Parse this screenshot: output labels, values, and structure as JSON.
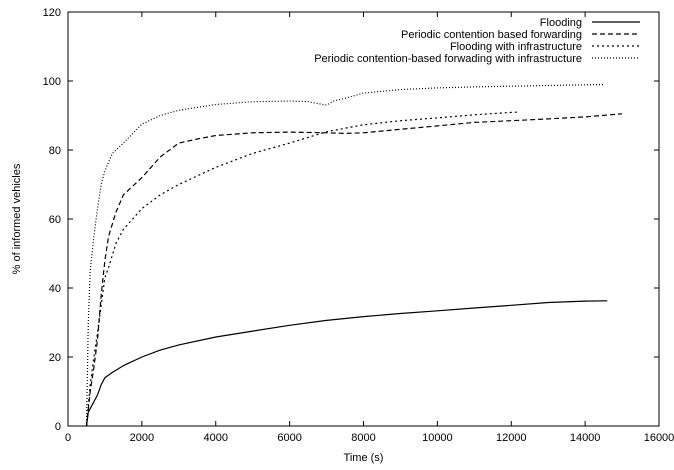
{
  "chart_data": {
    "type": "line",
    "title": "",
    "xlabel": "Time (s)",
    "ylabel": "% of informed vehicles",
    "xlim": [
      0,
      16000
    ],
    "ylim": [
      0,
      120
    ],
    "xticks": [
      0,
      2000,
      4000,
      6000,
      8000,
      10000,
      12000,
      14000,
      16000
    ],
    "yticks": [
      0,
      20,
      40,
      60,
      80,
      100,
      120
    ],
    "grid": false,
    "legend_position": "top-right",
    "line_color": "#000000",
    "series": [
      {
        "name": "Flooding",
        "dash": "solid",
        "x": [
          500,
          550,
          650,
          800,
          900,
          1000,
          1200,
          1500,
          2000,
          2500,
          3000,
          4000,
          5000,
          6000,
          7000,
          8000,
          9000,
          10000,
          11000,
          12000,
          13000,
          14000,
          14600
        ],
        "y": [
          0,
          4,
          6,
          9,
          12,
          14,
          15.5,
          17.5,
          20,
          22,
          23.5,
          25.8,
          27.5,
          29.2,
          30.6,
          31.7,
          32.6,
          33.4,
          34.2,
          35,
          35.8,
          36.2,
          36.3
        ]
      },
      {
        "name": "Periodic contention based forwarding",
        "dash": "dashed",
        "x": [
          500,
          600,
          700,
          800,
          900,
          1000,
          1100,
          1300,
          1500,
          2000,
          2500,
          3000,
          3500,
          4000,
          5000,
          6000,
          7000,
          7500,
          8000,
          9000,
          10000,
          11000,
          12000,
          13000,
          14000,
          15000
        ],
        "y": [
          0,
          10,
          17,
          25,
          38,
          48,
          55,
          62,
          67,
          72,
          78,
          82,
          83.2,
          84.2,
          85,
          85.2,
          85,
          84.8,
          85,
          86,
          87,
          88,
          88.5,
          89,
          89.6,
          90.5
        ]
      },
      {
        "name": "Flooding with infrastructure",
        "dash": "dotted",
        "x": [
          500,
          600,
          700,
          800,
          900,
          1000,
          1100,
          1300,
          1500,
          2000,
          2500,
          3000,
          4000,
          5000,
          6000,
          7000,
          8000,
          9000,
          10000,
          11000,
          12000,
          12200
        ],
        "y": [
          0,
          12,
          20,
          27,
          35,
          43,
          46,
          53,
          57,
          63,
          67,
          70,
          75,
          79,
          82,
          85.3,
          87.3,
          88.5,
          89.3,
          90.2,
          90.9,
          91
        ]
      },
      {
        "name": "Periodic contention-based forwading with infrastructure",
        "dash": "dense-dotted",
        "x": [
          500,
          550,
          600,
          700,
          800,
          900,
          1000,
          1200,
          1500,
          2000,
          2500,
          3000,
          4000,
          5000,
          6000,
          6500,
          6800,
          7000,
          7200,
          7500,
          8000,
          9000,
          10000,
          11000,
          12000,
          13000,
          14000,
          14500
        ],
        "y": [
          0,
          30,
          45,
          55,
          63,
          70,
          74,
          79,
          82,
          87.5,
          90,
          91.5,
          93.2,
          94,
          94.2,
          94,
          93.4,
          93,
          94.2,
          95,
          96.5,
          97.5,
          98,
          98.3,
          98.5,
          98.7,
          98.9,
          99
        ]
      }
    ]
  }
}
